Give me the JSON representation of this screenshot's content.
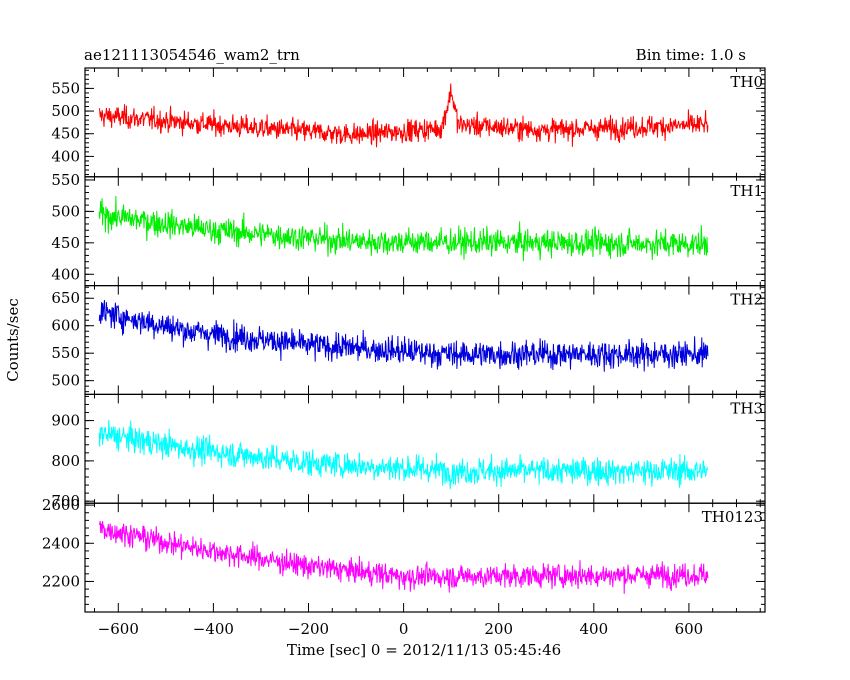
{
  "title_left": "ae121113054546_wam2_trn",
  "title_right": "Bin time: 1.0 s",
  "ylabel": "Counts/sec",
  "xlabel": "Time [sec] 0 = 2012/11/13 05:45:46",
  "chart_data": {
    "type": "line",
    "x_range": [
      -670,
      760
    ],
    "x_ticks": [
      -600,
      -400,
      -200,
      0,
      200,
      400,
      600
    ],
    "x_tick_labels": [
      "−600",
      "−400",
      "−200",
      "0",
      "200",
      "400",
      "600"
    ],
    "data_x_range": [
      -640,
      640
    ],
    "bin_time_s": 1.0,
    "panels": [
      {
        "name": "TH0",
        "color": "#ff0000",
        "ylim": [
          355,
          595
        ],
        "yticks": [
          400,
          450,
          500,
          550
        ],
        "ytick_labels": [
          "400",
          "450",
          "500",
          "550"
        ],
        "trend": [
          [
            -640,
            490
          ],
          [
            -300,
            462
          ],
          [
            -100,
            448
          ],
          [
            80,
            462
          ],
          [
            100,
            545
          ],
          [
            115,
            470
          ],
          [
            300,
            458
          ],
          [
            640,
            470
          ]
        ],
        "noise": 28
      },
      {
        "name": "TH1",
        "color": "#00ee00",
        "ylim": [
          382,
          555
        ],
        "yticks": [
          400,
          450,
          500,
          550
        ],
        "ytick_labels": [
          "400",
          "450",
          "500",
          "550"
        ],
        "trend": [
          [
            -640,
            495
          ],
          [
            -400,
            470
          ],
          [
            -100,
            452
          ],
          [
            300,
            450
          ],
          [
            640,
            448
          ]
        ],
        "noise": 24
      },
      {
        "name": "TH2",
        "color": "#0000dd",
        "ylim": [
          475,
          673
        ],
        "yticks": [
          500,
          550,
          600,
          650
        ],
        "ytick_labels": [
          "500",
          "550",
          "600",
          "650"
        ],
        "trend": [
          [
            -640,
            625
          ],
          [
            -450,
            590
          ],
          [
            -200,
            565
          ],
          [
            100,
            548
          ],
          [
            640,
            548
          ]
        ],
        "noise": 28
      },
      {
        "name": "TH3",
        "color": "#00ffff",
        "ylim": [
          695,
          965
        ],
        "yticks": [
          700,
          800,
          900
        ],
        "ytick_labels": [
          "700",
          "800",
          "900"
        ],
        "trend": [
          [
            -640,
            868
          ],
          [
            -450,
            830
          ],
          [
            -200,
            795
          ],
          [
            100,
            775
          ],
          [
            640,
            775
          ]
        ],
        "noise": 38
      },
      {
        "name": "TH0123",
        "color": "#ff00ff",
        "ylim": [
          2040,
          2610
        ],
        "yticks": [
          2200,
          2400,
          2600
        ],
        "ytick_labels": [
          "2200",
          "2400",
          "2600"
        ],
        "trend": [
          [
            -640,
            2480
          ],
          [
            -450,
            2380
          ],
          [
            -200,
            2280
          ],
          [
            0,
            2225
          ],
          [
            640,
            2235
          ]
        ],
        "noise": 70
      }
    ]
  }
}
